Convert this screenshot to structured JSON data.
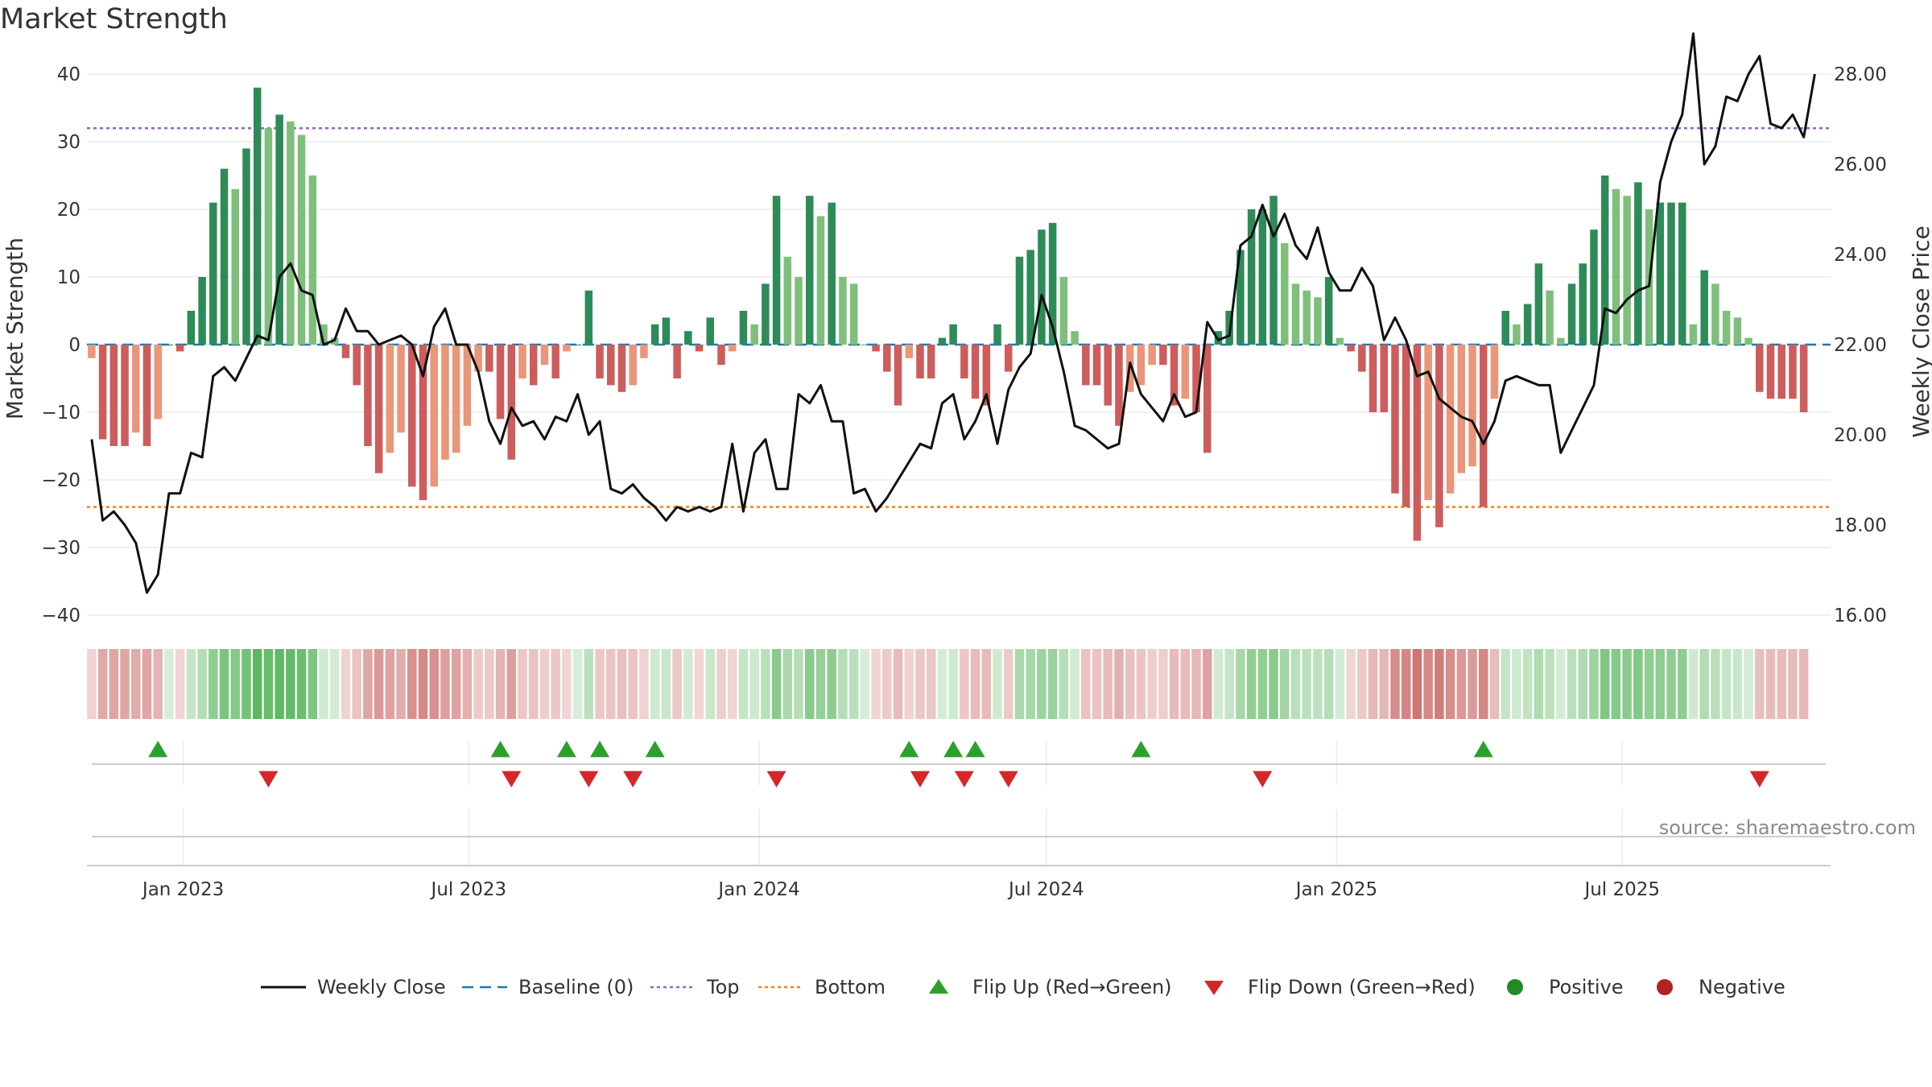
{
  "title": "Market Strength",
  "source": "source: sharemaestro.com",
  "colors": {
    "strong_green": "#2e8b57",
    "light_green": "#7fbf7b",
    "strong_red": "#cd5c5c",
    "light_red": "#e9967a",
    "price_line": "#111111",
    "baseline": "#1f77b4",
    "top": "#9467bd",
    "bottom": "#ff7f0e",
    "flip_up": "#2ca02c",
    "flip_down": "#d62728",
    "positive": "#228b22",
    "negative": "#b22222"
  },
  "legend": [
    {
      "key": "weekly_close",
      "label": "Weekly Close",
      "icon": "solid-line-icon"
    },
    {
      "key": "baseline",
      "label": "Baseline (0)",
      "icon": "dashed-line-icon"
    },
    {
      "key": "top",
      "label": "Top",
      "icon": "dotted-line-icon"
    },
    {
      "key": "bottom",
      "label": "Bottom",
      "icon": "dotted-line-icon"
    },
    {
      "key": "flip_up",
      "label": "Flip Up (Red→Green)",
      "icon": "triangle-up-icon"
    },
    {
      "key": "flip_down",
      "label": "Flip Down (Green→Red)",
      "icon": "triangle-down-icon"
    },
    {
      "key": "positive",
      "label": "Positive",
      "icon": "circle-icon"
    },
    {
      "key": "negative",
      "label": "Negative",
      "icon": "circle-icon"
    }
  ],
  "chart_data": {
    "type": "bar",
    "title": "Market Strength",
    "x_start": "2022-11-04",
    "x_period_days": 7,
    "x_range": [
      "2022-11-01",
      "2025-11-10"
    ],
    "x_ticks": [
      {
        "date": "2023-01-01",
        "label": "Jan 2023"
      },
      {
        "date": "2023-07-01",
        "label": "Jul 2023"
      },
      {
        "date": "2024-01-01",
        "label": "Jan 2024"
      },
      {
        "date": "2024-07-01",
        "label": "Jul 2024"
      },
      {
        "date": "2025-01-01",
        "label": "Jan 2025"
      },
      {
        "date": "2025-07-01",
        "label": "Jul 2025"
      }
    ],
    "y_left": {
      "label": "Market Strength",
      "range": [
        -40,
        40
      ],
      "ticks": [
        -40,
        -30,
        -20,
        -10,
        0,
        10,
        20,
        30,
        40
      ]
    },
    "y_right": {
      "label": "Weekly Close Price",
      "range": [
        16,
        28
      ],
      "ticks": [
        "16.00",
        "18.00",
        "20.00",
        "22.00",
        "24.00",
        "26.00",
        "28.00"
      ]
    },
    "top_level": 32,
    "bottom_level": -24,
    "baseline": 0,
    "grid": true,
    "legend_position": "bottom",
    "series": [
      {
        "name": "Market Strength",
        "values": [
          -2,
          -14,
          -15,
          -15,
          -13,
          -15,
          -11,
          0,
          -1,
          5,
          10,
          21,
          26,
          23,
          29,
          38,
          32,
          34,
          33,
          31,
          25,
          3,
          1,
          -2,
          -6,
          -15,
          -19,
          -16,
          -13,
          -21,
          -23,
          -21,
          -17,
          -16,
          -12,
          -4,
          -4,
          -11,
          -17,
          -5,
          -6,
          -3,
          -5,
          -1,
          0,
          8,
          -5,
          -6,
          -7,
          -6,
          -2,
          3,
          4,
          -5,
          2,
          -1,
          4,
          -3,
          -1,
          5,
          3,
          9,
          22,
          13,
          10,
          22,
          19,
          21,
          10,
          9,
          0,
          -1,
          -4,
          -9,
          -2,
          -5,
          -5,
          1,
          3,
          -5,
          -8,
          -9,
          3,
          -4,
          13,
          14,
          17,
          18,
          10,
          2,
          -6,
          -6,
          -9,
          -12,
          -7,
          -6,
          -3,
          -3,
          -9,
          -8,
          -10,
          -16,
          2,
          5,
          14,
          20,
          20,
          22,
          15,
          9,
          8,
          7,
          10,
          1,
          -1,
          -4,
          -10,
          -10,
          -22,
          -24,
          -29,
          -23,
          -27,
          -22,
          -19,
          -18,
          -24,
          -8,
          5,
          3,
          6,
          12,
          8,
          1,
          9,
          12,
          17,
          25,
          23,
          22,
          24,
          20,
          21,
          21,
          21,
          3,
          11,
          9,
          5,
          4,
          1,
          -7,
          -8,
          -8,
          -8,
          -10
        ]
      },
      {
        "name": "Weekly Close",
        "axis": "right",
        "values": [
          19.9,
          18.1,
          18.3,
          18.0,
          17.6,
          16.5,
          16.9,
          18.7,
          18.7,
          19.6,
          19.5,
          21.3,
          21.5,
          21.2,
          21.7,
          22.2,
          22.1,
          23.5,
          23.8,
          23.2,
          23.1,
          22.0,
          22.1,
          22.8,
          22.3,
          22.3,
          22.0,
          22.1,
          22.2,
          22.0,
          21.3,
          22.4,
          22.8,
          22.0,
          22.0,
          21.4,
          20.3,
          19.8,
          20.6,
          20.2,
          20.3,
          19.9,
          20.4,
          20.3,
          20.9,
          20.0,
          20.3,
          18.8,
          18.7,
          18.9,
          18.6,
          18.4,
          18.1,
          18.4,
          18.3,
          18.4,
          18.3,
          18.4,
          19.8,
          18.3,
          19.6,
          19.9,
          18.8,
          18.8,
          20.9,
          20.7,
          21.1,
          20.3,
          20.3,
          18.7,
          18.8,
          18.3,
          18.6,
          19.0,
          19.4,
          19.8,
          19.7,
          20.7,
          20.9,
          19.9,
          20.3,
          20.9,
          19.8,
          21.0,
          21.5,
          21.8,
          23.1,
          22.4,
          21.4,
          20.2,
          20.1,
          19.9,
          19.7,
          19.8,
          21.6,
          20.9,
          20.6,
          20.3,
          20.9,
          20.4,
          20.5,
          22.5,
          22.1,
          22.2,
          24.2,
          24.4,
          25.1,
          24.4,
          24.9,
          24.2,
          23.9,
          24.6,
          23.6,
          23.2,
          23.2,
          23.7,
          23.3,
          22.1,
          22.6,
          22.1,
          21.3,
          21.4,
          20.8,
          20.6,
          20.4,
          20.3,
          19.8,
          20.3,
          21.2,
          21.3,
          21.2,
          21.1,
          21.1,
          19.6,
          20.1,
          20.6,
          21.1,
          22.8,
          22.7,
          23.0,
          23.2,
          23.3,
          25.6,
          26.5,
          27.1,
          28.9,
          26.0,
          26.4,
          27.5,
          27.4,
          28.0,
          28.4,
          26.9,
          26.8,
          27.1,
          26.6,
          28.0
        ]
      }
    ],
    "flip_up_dates": [
      "2022-12-16",
      "2023-07-21",
      "2023-09-01",
      "2023-09-22",
      "2023-10-27",
      "2024-04-05",
      "2024-05-03",
      "2024-05-17",
      "2024-08-30",
      "2025-04-04"
    ],
    "flip_down_dates": [
      "2023-02-24",
      "2023-07-28",
      "2023-09-15",
      "2023-10-13",
      "2024-01-12",
      "2024-04-12",
      "2024-05-10",
      "2024-06-07",
      "2024-11-15",
      "2025-09-26"
    ],
    "heat_strip": {
      "positive_label": "Positive",
      "negative_label": "Negative"
    }
  }
}
